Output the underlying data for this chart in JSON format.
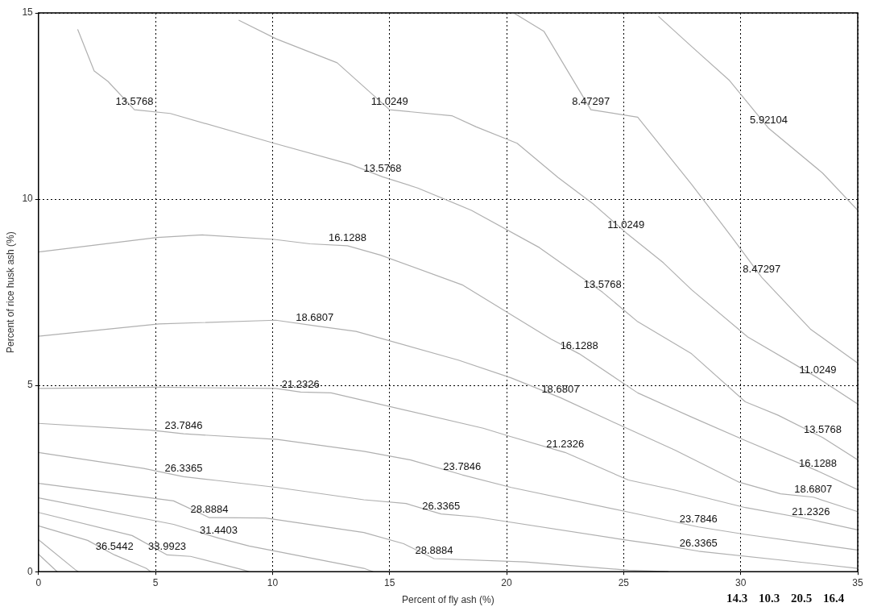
{
  "chart_data": {
    "type": "line",
    "xlabel": "Percent of fly ash (%)",
    "ylabel": "Percent of rice husk ash (%)",
    "xlim": [
      0,
      35
    ],
    "ylim": [
      0,
      15
    ],
    "xticks": [
      0,
      5,
      10,
      15,
      20,
      25,
      30,
      35
    ],
    "yticks": [
      0,
      5,
      10,
      15
    ],
    "grid": true,
    "legend": false,
    "series": [
      {
        "color": "#b0b0b0",
        "x": [
          26.5,
          27.9,
          29.5,
          31.2,
          33.5,
          35
        ],
        "values": [
          14.9,
          14.1,
          13.2,
          11.9,
          10.7,
          9.7
        ]
      },
      {
        "color": "#b0b0b0",
        "x": [
          20.3,
          21.6,
          23.6,
          25.6,
          27.9,
          29.6,
          30.9,
          33,
          35
        ],
        "values": [
          15,
          14.5,
          12.4,
          12.2,
          10.4,
          9,
          7.9,
          6.5,
          5.6
        ]
      },
      {
        "color": "#b0b0b0",
        "x": [
          8.57,
          10.17,
          12.76,
          15,
          17.66,
          18.7,
          20.45,
          22.2,
          23.7,
          25.1,
          26.7,
          27.9,
          30.3,
          33.3,
          35
        ],
        "values": [
          14.8,
          14.3,
          13.66,
          12.4,
          12.24,
          11.94,
          11.5,
          10.58,
          9.87,
          9.1,
          8.29,
          7.57,
          6.3,
          5.2,
          4.5
        ]
      },
      {
        "color": "#b0b0b0",
        "x": [
          1.68,
          2.38,
          2.97,
          4.1,
          5.63,
          10.07,
          13.3,
          14.7,
          16.2,
          18.5,
          21.4,
          24.1,
          25.6,
          27.9,
          30.2,
          31.6,
          33.5,
          35
        ],
        "values": [
          14.55,
          13.44,
          13.16,
          12.4,
          12.3,
          11.5,
          10.94,
          10.6,
          10.3,
          9.7,
          8.7,
          7.5,
          6.71,
          5.85,
          4.56,
          4.2,
          3.6,
          3.0
        ]
      },
      {
        "color": "#b0b0b0",
        "x": [
          0,
          5.07,
          7,
          10.07,
          11.6,
          13.2,
          14.6,
          18.1,
          21.9,
          23.1,
          25.6,
          27.9,
          30.2,
          33.3,
          35
        ],
        "values": [
          8.58,
          8.97,
          9.04,
          8.92,
          8.8,
          8.75,
          8.5,
          7.7,
          6.24,
          5.85,
          4.8,
          4.15,
          3.52,
          2.7,
          2.2
        ]
      },
      {
        "color": "#b0b0b0",
        "x": [
          0,
          5.14,
          10.14,
          11.8,
          13.57,
          17.94,
          20.2,
          22.3,
          24.4,
          27.2,
          29.9,
          31.7,
          33.1,
          35
        ],
        "values": [
          6.32,
          6.65,
          6.75,
          6.6,
          6.45,
          5.68,
          5.2,
          4.67,
          4.06,
          3.26,
          2.41,
          2.09,
          2.0,
          1.61
        ]
      },
      {
        "color": "#b0b0b0",
        "x": [
          0,
          5.14,
          10.14,
          11.2,
          12.5,
          14.2,
          19,
          20.1,
          22.5,
          25.2,
          27.2,
          30.2,
          33,
          35
        ],
        "values": [
          4.92,
          4.95,
          4.92,
          4.82,
          4.8,
          4.55,
          3.85,
          3.64,
          3.2,
          2.46,
          2.19,
          1.72,
          1.4,
          1.12
        ]
      },
      {
        "color": "#b0b0b0",
        "x": [
          0,
          4.8,
          6.2,
          10.2,
          13.9,
          15.9,
          18.1,
          20.2,
          25.2,
          28.2,
          30.2,
          35
        ],
        "values": [
          3.98,
          3.8,
          3.7,
          3.55,
          3.23,
          3.0,
          2.6,
          2.26,
          1.6,
          1.2,
          1.0,
          0.58
        ]
      },
      {
        "color": "#b0b0b0",
        "x": [
          0,
          4.5,
          6.2,
          7.6,
          10.2,
          13.9,
          15.7,
          17.2,
          18.7,
          25.2,
          26.9,
          28.2,
          35
        ],
        "values": [
          3.2,
          2.77,
          2.55,
          2.45,
          2.26,
          1.93,
          1.83,
          1.55,
          1.47,
          0.84,
          0.69,
          0.55,
          0.09
        ]
      },
      {
        "color": "#b0b0b0",
        "x": [
          0,
          5.77,
          7.3,
          9.7,
          13.9,
          15.6,
          16.9,
          20.8,
          25.2,
          26.9
        ],
        "values": [
          2.37,
          1.9,
          1.45,
          1.44,
          1.05,
          0.75,
          0.35,
          0.26,
          0.04,
          0
        ]
      },
      {
        "color": "#b0b0b0",
        "x": [
          0,
          5.77,
          7.7,
          9,
          13.9,
          14.3
        ],
        "values": [
          1.98,
          1.27,
          0.9,
          0.69,
          0.09,
          0
        ]
      },
      {
        "color": "#b0b0b0",
        "x": [
          0,
          4,
          5.5,
          6.5,
          8.8,
          9
        ],
        "values": [
          1.59,
          0.97,
          0.45,
          0.41,
          0.04,
          0
        ]
      },
      {
        "color": "#b0b0b0",
        "x": [
          0,
          2.1,
          3.25,
          4.6,
          4.8
        ],
        "values": [
          1.23,
          0.84,
          0.45,
          0.09,
          0
        ]
      },
      {
        "color": "#b0b0b0",
        "x": [
          0,
          1.6,
          1.7
        ],
        "values": [
          0.86,
          0.04,
          0
        ]
      },
      {
        "color": "#b0b0b0",
        "x": [
          0,
          0.8
        ],
        "values": [
          0.47,
          0
        ]
      }
    ],
    "annotations": [
      {
        "text": "5.92104",
        "x": 31.2,
        "y": 11.9
      },
      {
        "text": "8.47297",
        "x": 23.6,
        "y": 12.4
      },
      {
        "text": "8.47297",
        "x": 30.9,
        "y": 7.9
      },
      {
        "text": "11.0249",
        "x": 15,
        "y": 12.4
      },
      {
        "text": "11.0249",
        "x": 25.1,
        "y": 9.1
      },
      {
        "text": "11.0249",
        "x": 33.3,
        "y": 5.2
      },
      {
        "text": "13.5768",
        "x": 4.1,
        "y": 12.4
      },
      {
        "text": "13.5768",
        "x": 14.7,
        "y": 10.6
      },
      {
        "text": "13.5768",
        "x": 24.1,
        "y": 7.5
      },
      {
        "text": "13.5768",
        "x": 33.5,
        "y": 3.6
      },
      {
        "text": "16.1288",
        "x": 13.2,
        "y": 8.75
      },
      {
        "text": "16.1288",
        "x": 23.1,
        "y": 5.85
      },
      {
        "text": "16.1288",
        "x": 33.3,
        "y": 2.7
      },
      {
        "text": "18.6807",
        "x": 11.8,
        "y": 6.6
      },
      {
        "text": "18.6807",
        "x": 22.3,
        "y": 4.67
      },
      {
        "text": "18.6807",
        "x": 33.1,
        "y": 2.0
      },
      {
        "text": "21.2326",
        "x": 11.2,
        "y": 4.82
      },
      {
        "text": "21.2326",
        "x": 22.5,
        "y": 3.2
      },
      {
        "text": "21.2326",
        "x": 33,
        "y": 1.4
      },
      {
        "text": "23.7846",
        "x": 6.2,
        "y": 3.7
      },
      {
        "text": "23.7846",
        "x": 18.1,
        "y": 2.6
      },
      {
        "text": "23.7846",
        "x": 28.2,
        "y": 1.2
      },
      {
        "text": "26.3365",
        "x": 6.2,
        "y": 2.55
      },
      {
        "text": "26.3365",
        "x": 17.2,
        "y": 1.55
      },
      {
        "text": "26.3365",
        "x": 28.2,
        "y": 0.55
      },
      {
        "text": "28.8884",
        "x": 7.3,
        "y": 1.45
      },
      {
        "text": "28.8884",
        "x": 16.9,
        "y": 0.35
      },
      {
        "text": "31.4403",
        "x": 7.7,
        "y": 0.9
      },
      {
        "text": "33.9923",
        "x": 5.5,
        "y": 0.45
      },
      {
        "text": "36.5442",
        "x": 3.25,
        "y": 0.45
      },
      "14.3",
      "10.3",
      "20.5",
      "16.4"
    ]
  }
}
